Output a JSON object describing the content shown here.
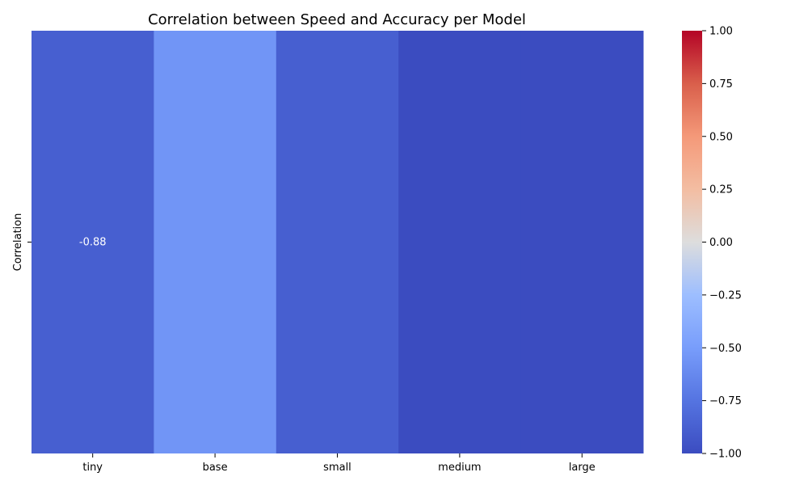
{
  "chart_data": {
    "type": "heatmap",
    "title": "Correlation between Speed and Accuracy per Model",
    "xlabel": "",
    "ylabel": "",
    "x_categories": [
      "tiny",
      "base",
      "small",
      "medium",
      "large"
    ],
    "y_categories": [
      "Correlation"
    ],
    "values": [
      [
        -0.88,
        -0.55,
        -0.88,
        -1.0,
        -1.0
      ]
    ],
    "annotations": [
      {
        "row": 0,
        "col": 0,
        "text": "-0.88"
      }
    ],
    "colorscale": "coolwarm",
    "zlim": [
      -1.0,
      1.0
    ],
    "colorbar_ticks": [
      1.0,
      0.75,
      0.5,
      0.25,
      0.0,
      -0.25,
      -0.5,
      -0.75,
      -1.0
    ],
    "colorbar_tick_labels": [
      "1.00",
      "0.75",
      "0.50",
      "0.25",
      "0.00",
      "−0.25",
      "−0.50",
      "−0.75",
      "−1.00"
    ],
    "colorbar_position": "right",
    "grid": false
  }
}
